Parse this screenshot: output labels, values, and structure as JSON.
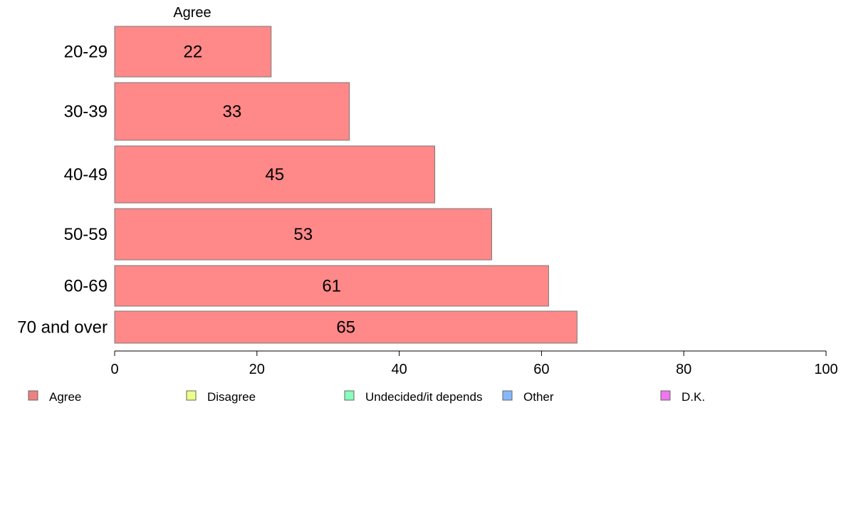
{
  "chart_data": {
    "type": "bar",
    "orientation": "horizontal",
    "series_label": "Agree",
    "categories": [
      "20-29",
      "30-39",
      "40-49",
      "50-59",
      "60-69",
      "70 and over"
    ],
    "series": [
      {
        "name": "Agree",
        "values": [
          22,
          33,
          45,
          53,
          61,
          65
        ],
        "color": "#ff8888"
      }
    ],
    "data_labels": [
      "22",
      "33",
      "45",
      "53",
      "61",
      "65"
    ],
    "xlim": [
      0,
      100
    ],
    "x_ticks": [
      0,
      20,
      40,
      60,
      80,
      100
    ],
    "grid": false,
    "legend_position": "bottom",
    "legend": [
      {
        "label": "Agree",
        "color": "#f08080"
      },
      {
        "label": "Disagree",
        "color": "#eeff88"
      },
      {
        "label": "Undecided/it depends",
        "color": "#88ffbb"
      },
      {
        "label": "Other",
        "color": "#88b8ff"
      },
      {
        "label": "D.K.",
        "color": "#ee77ee"
      }
    ]
  }
}
